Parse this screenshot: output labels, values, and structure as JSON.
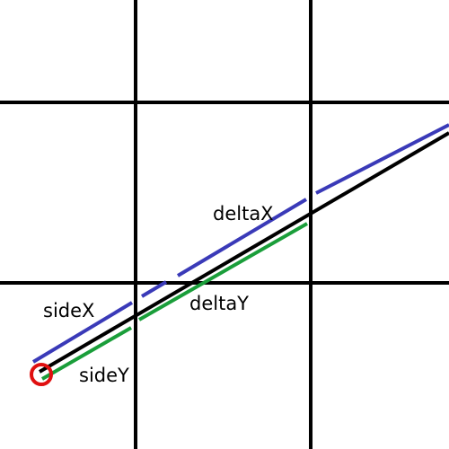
{
  "labels": {
    "delta_x": "deltaX",
    "delta_y": "deltaY",
    "side_x": "sideX",
    "side_y": "sideY"
  },
  "colors": {
    "grid": "#000000",
    "ray": "#000000",
    "side_x_and_delta_x": "#3a3ab8",
    "side_y_and_delta_y": "#1a9e3a",
    "start_marker": "#e01010"
  }
}
